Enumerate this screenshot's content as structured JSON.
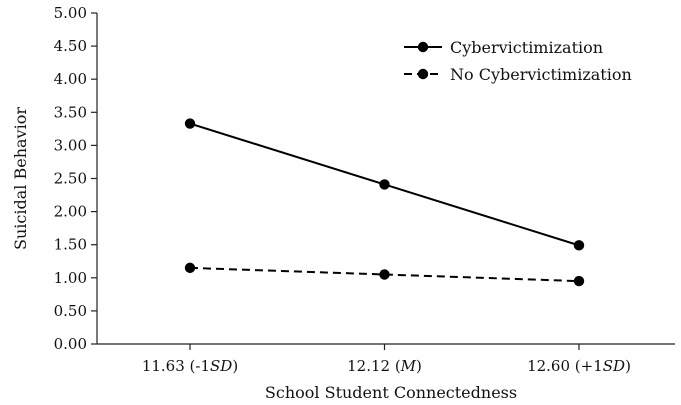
{
  "chart_data": {
    "type": "line",
    "categories": [
      "11.63 (-1SD)",
      "12.12 (M)",
      "12.60 (+1SD)"
    ],
    "category_parts": [
      {
        "prefix": "11.63 (-1",
        "italic": "SD",
        "suffix": ")"
      },
      {
        "prefix": "12.12 (",
        "italic": "M",
        "suffix": ")"
      },
      {
        "prefix": "12.60 (+1",
        "italic": "SD",
        "suffix": ")"
      }
    ],
    "series": [
      {
        "name": "Cybervictimization",
        "values": [
          3.33,
          2.41,
          1.49
        ],
        "line_style": "solid",
        "marker": "circle",
        "color": "#000000"
      },
      {
        "name": "No Cybervictimization",
        "values": [
          1.15,
          1.05,
          0.95
        ],
        "line_style": "dashed",
        "marker": "circle",
        "color": "#000000"
      }
    ],
    "xlabel": "School Student Connectedness",
    "ylabel": "Suicidal Behavior",
    "ylim": [
      0,
      5
    ],
    "yticks": [
      "0.00",
      "0.50",
      "1.00",
      "1.50",
      "2.00",
      "2.50",
      "3.00",
      "3.50",
      "4.00",
      "4.50",
      "5.00"
    ],
    "grid": false,
    "legend_position": "top-right"
  }
}
